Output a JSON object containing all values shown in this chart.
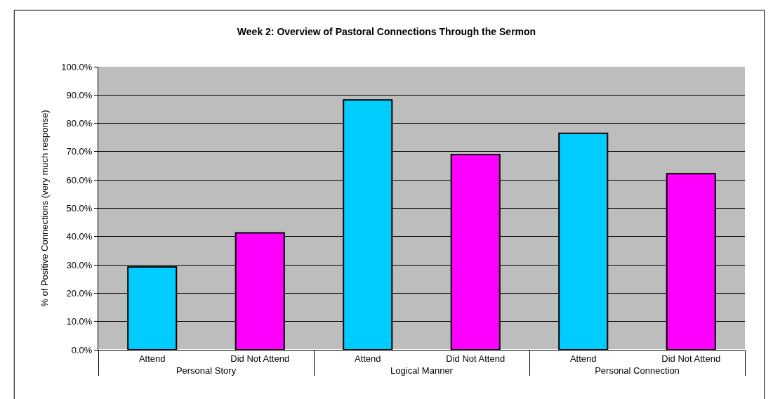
{
  "chart_data": {
    "type": "bar",
    "title": "Week 2: Overview of Pastoral Connections Through the Sermon",
    "ylabel": "% of Positive Connections (very much response)",
    "categories": [
      "Attend",
      "Did Not Attend",
      "Attend",
      "Did Not Attend",
      "Attend",
      "Did Not Attend"
    ],
    "annotations": [
      "Personal Story",
      "Logical Manner",
      "Personal Connection"
    ],
    "values": [
      29.3,
      41.3,
      88.3,
      69.0,
      76.5,
      62.2
    ],
    "colors": [
      "#00ccff",
      "#ff00ff",
      "#00ccff",
      "#ff00ff",
      "#00ccff",
      "#ff00ff"
    ],
    "ylim": [
      0,
      100
    ],
    "yticks": [
      {
        "value": 0,
        "label": "0.0%"
      },
      {
        "value": 10,
        "label": "10.0%"
      },
      {
        "value": 20,
        "label": "20.0%"
      },
      {
        "value": 30,
        "label": "30.0%"
      },
      {
        "value": 40,
        "label": "40.0%"
      },
      {
        "value": 50,
        "label": "50.0%"
      },
      {
        "value": 60,
        "label": "60.0%"
      },
      {
        "value": 70,
        "label": "70.0%"
      },
      {
        "value": 80,
        "label": "80.0%"
      },
      {
        "value": 90,
        "label": "90.0%"
      },
      {
        "value": 100,
        "label": "100.0%"
      }
    ],
    "grid": "y",
    "legend": false
  }
}
